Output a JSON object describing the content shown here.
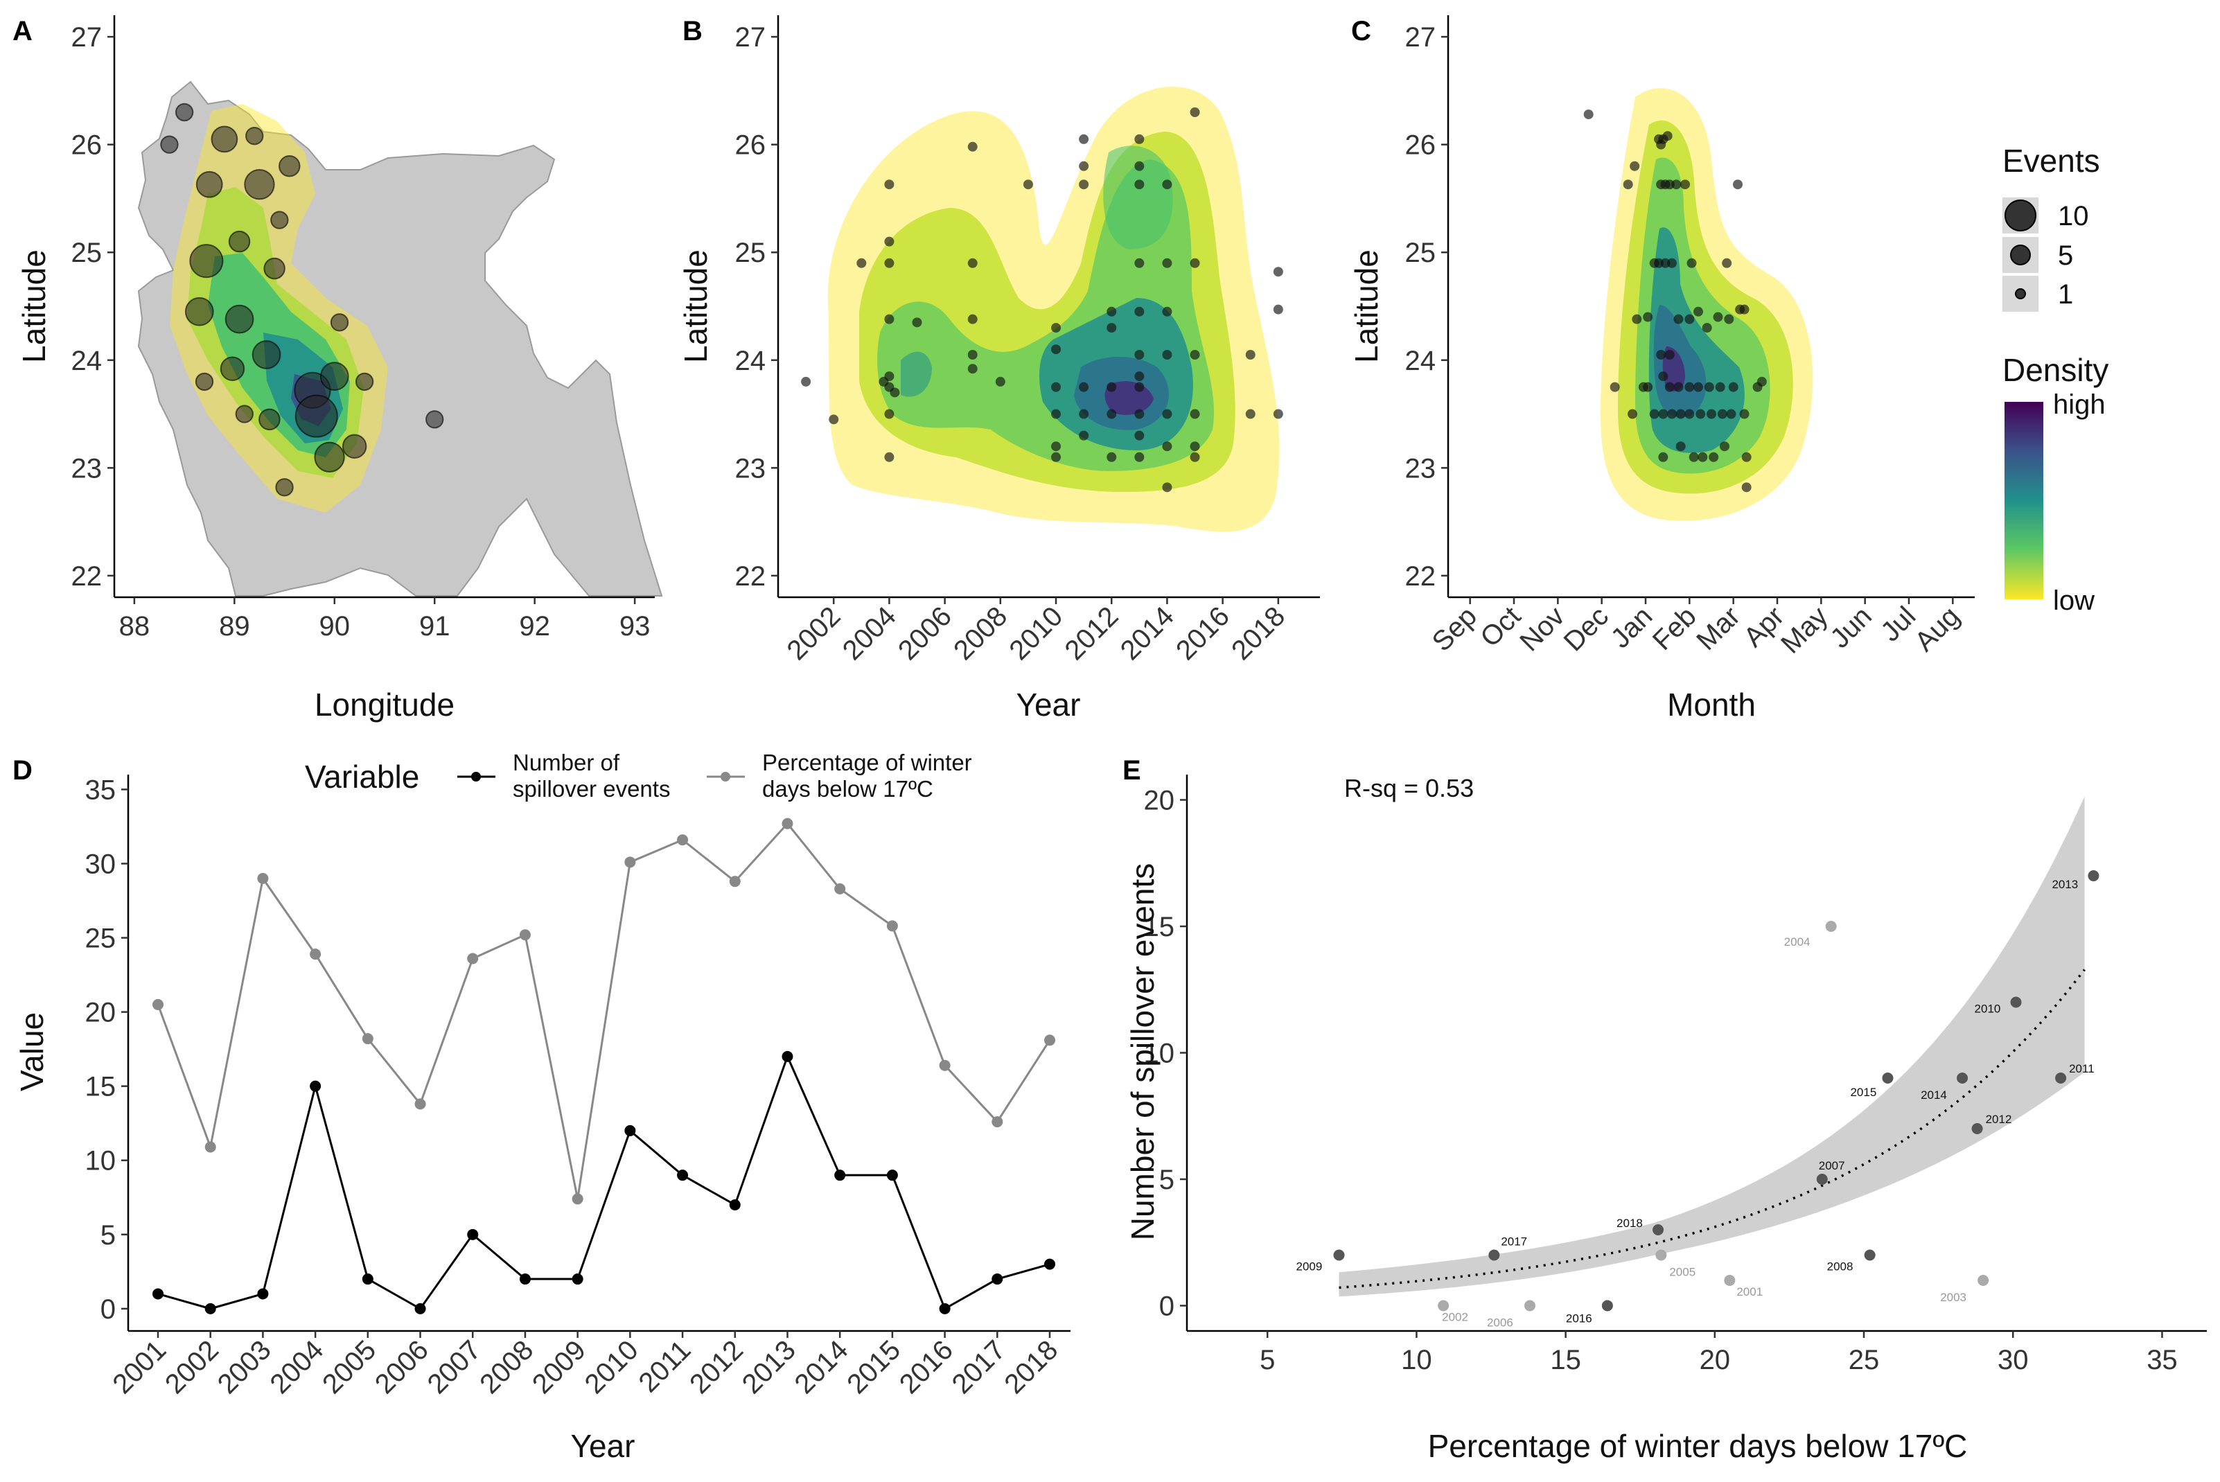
{
  "panels": {
    "A": {
      "label": "A",
      "xlabel": "Longitude",
      "ylabel": "Latitude",
      "xticks": [
        "88",
        "89",
        "90",
        "91",
        "92",
        "93"
      ],
      "yticks": [
        "22",
        "23",
        "24",
        "25",
        "26",
        "27"
      ]
    },
    "B": {
      "label": "B",
      "xlabel": "Year",
      "ylabel": "Latitude",
      "xticks": [
        "2002",
        "2004",
        "2006",
        "2008",
        "2010",
        "2012",
        "2014",
        "2016",
        "2018"
      ],
      "yticks": [
        "22",
        "23",
        "24",
        "25",
        "26",
        "27"
      ]
    },
    "C": {
      "label": "C",
      "xlabel": "Month",
      "ylabel": "Latitude",
      "xticks": [
        "Sep",
        "Oct",
        "Nov",
        "Dec",
        "Jan",
        "Feb",
        "Mar",
        "Apr",
        "May",
        "Jun",
        "Jul",
        "Aug"
      ],
      "yticks": [
        "22",
        "23",
        "24",
        "25",
        "26",
        "27"
      ]
    },
    "D": {
      "label": "D",
      "xlabel": "Year",
      "ylabel": "Value",
      "legend_title": "Variable",
      "legend_items": [
        "Number of spillover events",
        "Percentage of winter days below 17ºC"
      ],
      "legend_lines": [
        [
          "Number of",
          "spillover events"
        ],
        [
          "Percentage of winter",
          "days below 17ºC"
        ]
      ]
    },
    "E": {
      "label": "E",
      "xlabel": "Percentage of winter days below 17ºC",
      "ylabel": "Number of spillover events",
      "annotation": "R-sq = 0.53"
    }
  },
  "legend_right": {
    "events_title": "Events",
    "events_labels": [
      "10",
      "5",
      "1"
    ],
    "density_title": "Density",
    "density_high": "high",
    "density_low": "low"
  },
  "colors": {
    "series_events": "#000000",
    "series_pct": "#888888",
    "ribbon": "#c8c8c8",
    "map_land": "#c8c8c8"
  },
  "chart_data": [
    {
      "id": "A",
      "type": "scatter",
      "title": "",
      "xlabel": "Longitude",
      "ylabel": "Latitude",
      "xlim": [
        87.8,
        93.2
      ],
      "ylim": [
        21.8,
        27.2
      ],
      "points": [
        {
          "x": 88.35,
          "y": 26.0,
          "events": 1
        },
        {
          "x": 88.5,
          "y": 26.3,
          "events": 1
        },
        {
          "x": 88.75,
          "y": 25.63,
          "events": 4
        },
        {
          "x": 88.9,
          "y": 26.05,
          "events": 4
        },
        {
          "x": 89.2,
          "y": 26.08,
          "events": 1
        },
        {
          "x": 89.25,
          "y": 25.63,
          "events": 6
        },
        {
          "x": 89.55,
          "y": 25.8,
          "events": 2
        },
        {
          "x": 89.45,
          "y": 25.3,
          "events": 1
        },
        {
          "x": 88.72,
          "y": 24.92,
          "events": 8
        },
        {
          "x": 89.05,
          "y": 25.1,
          "events": 2
        },
        {
          "x": 89.4,
          "y": 24.85,
          "events": 2
        },
        {
          "x": 88.65,
          "y": 24.45,
          "events": 5
        },
        {
          "x": 89.05,
          "y": 24.38,
          "events": 5
        },
        {
          "x": 88.7,
          "y": 23.8,
          "events": 1
        },
        {
          "x": 88.98,
          "y": 23.92,
          "events": 3
        },
        {
          "x": 89.32,
          "y": 24.05,
          "events": 5
        },
        {
          "x": 89.1,
          "y": 23.5,
          "events": 1
        },
        {
          "x": 89.35,
          "y": 23.45,
          "events": 2
        },
        {
          "x": 89.78,
          "y": 23.72,
          "events": 10
        },
        {
          "x": 89.82,
          "y": 23.48,
          "events": 15
        },
        {
          "x": 90.0,
          "y": 23.85,
          "events": 5
        },
        {
          "x": 90.05,
          "y": 24.35,
          "events": 1
        },
        {
          "x": 90.3,
          "y": 23.8,
          "events": 1
        },
        {
          "x": 90.2,
          "y": 23.2,
          "events": 3
        },
        {
          "x": 89.95,
          "y": 23.1,
          "events": 6
        },
        {
          "x": 89.5,
          "y": 22.82,
          "events": 1
        },
        {
          "x": 91.0,
          "y": 23.45,
          "events": 1
        }
      ]
    },
    {
      "id": "B",
      "type": "scatter",
      "title": "",
      "xlabel": "Year",
      "ylabel": "Latitude",
      "xlim": [
        2000.0,
        2019.5
      ],
      "ylim": [
        21.8,
        27.2
      ],
      "points": [
        {
          "x": 2001,
          "y": 23.8
        },
        {
          "x": 2002,
          "y": 23.45
        },
        {
          "x": 2003,
          "y": 24.9
        },
        {
          "x": 2004,
          "y": 25.63
        },
        {
          "x": 2004,
          "y": 25.1
        },
        {
          "x": 2004,
          "y": 24.9
        },
        {
          "x": 2004,
          "y": 24.38
        },
        {
          "x": 2004,
          "y": 23.85
        },
        {
          "x": 2004,
          "y": 23.75
        },
        {
          "x": 2004,
          "y": 23.5
        },
        {
          "x": 2004,
          "y": 23.1
        },
        {
          "x": 2003.8,
          "y": 23.8
        },
        {
          "x": 2004.2,
          "y": 23.7
        },
        {
          "x": 2005,
          "y": 24.35
        },
        {
          "x": 2007,
          "y": 25.98
        },
        {
          "x": 2007,
          "y": 24.9
        },
        {
          "x": 2007,
          "y": 24.38
        },
        {
          "x": 2007,
          "y": 24.05
        },
        {
          "x": 2007,
          "y": 23.92
        },
        {
          "x": 2008,
          "y": 23.8
        },
        {
          "x": 2009,
          "y": 25.63
        },
        {
          "x": 2010,
          "y": 23.75
        },
        {
          "x": 2010,
          "y": 23.5
        },
        {
          "x": 2010,
          "y": 23.2
        },
        {
          "x": 2010,
          "y": 23.1
        },
        {
          "x": 2010,
          "y": 24.1
        },
        {
          "x": 2010,
          "y": 24.3
        },
        {
          "x": 2011,
          "y": 26.05
        },
        {
          "x": 2011,
          "y": 25.8
        },
        {
          "x": 2011,
          "y": 25.63
        },
        {
          "x": 2011,
          "y": 23.75
        },
        {
          "x": 2011,
          "y": 23.5
        },
        {
          "x": 2011,
          "y": 23.3
        },
        {
          "x": 2012,
          "y": 24.45
        },
        {
          "x": 2012,
          "y": 24.3
        },
        {
          "x": 2012,
          "y": 23.75
        },
        {
          "x": 2012,
          "y": 23.5
        },
        {
          "x": 2012,
          "y": 23.1
        },
        {
          "x": 2013,
          "y": 26.05
        },
        {
          "x": 2013,
          "y": 25.8
        },
        {
          "x": 2013,
          "y": 25.63
        },
        {
          "x": 2013,
          "y": 24.9
        },
        {
          "x": 2013,
          "y": 24.45
        },
        {
          "x": 2013,
          "y": 24.05
        },
        {
          "x": 2013,
          "y": 23.85
        },
        {
          "x": 2013,
          "y": 23.75
        },
        {
          "x": 2013,
          "y": 23.5
        },
        {
          "x": 2013,
          "y": 23.3
        },
        {
          "x": 2013,
          "y": 23.1
        },
        {
          "x": 2014,
          "y": 25.63
        },
        {
          "x": 2014,
          "y": 24.9
        },
        {
          "x": 2014,
          "y": 24.45
        },
        {
          "x": 2014,
          "y": 23.5
        },
        {
          "x": 2014,
          "y": 23.2
        },
        {
          "x": 2014,
          "y": 22.82
        },
        {
          "x": 2014,
          "y": 24.05
        },
        {
          "x": 2015,
          "y": 24.9
        },
        {
          "x": 2015,
          "y": 24.05
        },
        {
          "x": 2015,
          "y": 23.5
        },
        {
          "x": 2015,
          "y": 23.2
        },
        {
          "x": 2015,
          "y": 23.1
        },
        {
          "x": 2015,
          "y": 26.3
        },
        {
          "x": 2017,
          "y": 24.05
        },
        {
          "x": 2017,
          "y": 23.5
        },
        {
          "x": 2018,
          "y": 24.82
        },
        {
          "x": 2018,
          "y": 24.47
        },
        {
          "x": 2018,
          "y": 23.5
        }
      ]
    },
    {
      "id": "C",
      "type": "scatter",
      "title": "",
      "xlabel": "Month",
      "ylabel": "Latitude",
      "xlim": [
        0.5,
        12.5
      ],
      "ylim": [
        21.8,
        27.2
      ],
      "points": [
        {
          "x": 3.7,
          "y": 26.28
        },
        {
          "x": 4.3,
          "y": 23.75
        },
        {
          "x": 4.6,
          "y": 25.63
        },
        {
          "x": 4.75,
          "y": 25.8
        },
        {
          "x": 4.8,
          "y": 24.38
        },
        {
          "x": 4.7,
          "y": 23.5
        },
        {
          "x": 4.95,
          "y": 23.75
        },
        {
          "x": 5.05,
          "y": 23.75
        },
        {
          "x": 5.05,
          "y": 24.4
        },
        {
          "x": 5.2,
          "y": 24.9
        },
        {
          "x": 5.2,
          "y": 23.5
        },
        {
          "x": 5.3,
          "y": 26.05
        },
        {
          "x": 5.35,
          "y": 26.0
        },
        {
          "x": 5.4,
          "y": 26.05
        },
        {
          "x": 5.35,
          "y": 25.63
        },
        {
          "x": 5.45,
          "y": 25.63
        },
        {
          "x": 5.3,
          "y": 24.9
        },
        {
          "x": 5.45,
          "y": 24.9
        },
        {
          "x": 5.35,
          "y": 24.05
        },
        {
          "x": 5.4,
          "y": 23.85
        },
        {
          "x": 5.4,
          "y": 23.5
        },
        {
          "x": 5.4,
          "y": 23.1
        },
        {
          "x": 5.5,
          "y": 26.08
        },
        {
          "x": 5.55,
          "y": 25.63
        },
        {
          "x": 5.6,
          "y": 24.9
        },
        {
          "x": 5.55,
          "y": 24.05
        },
        {
          "x": 5.55,
          "y": 23.75
        },
        {
          "x": 5.6,
          "y": 23.5
        },
        {
          "x": 5.7,
          "y": 25.63
        },
        {
          "x": 5.75,
          "y": 24.38
        },
        {
          "x": 5.75,
          "y": 23.75
        },
        {
          "x": 5.8,
          "y": 23.5
        },
        {
          "x": 5.8,
          "y": 23.2
        },
        {
          "x": 5.9,
          "y": 25.63
        },
        {
          "x": 6.0,
          "y": 24.38
        },
        {
          "x": 6.0,
          "y": 23.75
        },
        {
          "x": 6.0,
          "y": 23.5
        },
        {
          "x": 6.05,
          "y": 24.9
        },
        {
          "x": 6.2,
          "y": 24.45
        },
        {
          "x": 6.2,
          "y": 23.75
        },
        {
          "x": 6.25,
          "y": 23.5
        },
        {
          "x": 6.3,
          "y": 23.1
        },
        {
          "x": 6.4,
          "y": 24.3
        },
        {
          "x": 6.45,
          "y": 23.75
        },
        {
          "x": 6.5,
          "y": 23.5
        },
        {
          "x": 6.55,
          "y": 23.1
        },
        {
          "x": 6.65,
          "y": 24.4
        },
        {
          "x": 6.7,
          "y": 23.75
        },
        {
          "x": 6.75,
          "y": 23.5
        },
        {
          "x": 6.8,
          "y": 23.2
        },
        {
          "x": 6.85,
          "y": 24.9
        },
        {
          "x": 6.9,
          "y": 24.38
        },
        {
          "x": 6.95,
          "y": 23.5
        },
        {
          "x": 7.0,
          "y": 23.75
        },
        {
          "x": 7.1,
          "y": 25.63
        },
        {
          "x": 7.15,
          "y": 24.47
        },
        {
          "x": 7.25,
          "y": 24.47
        },
        {
          "x": 7.25,
          "y": 23.5
        },
        {
          "x": 7.3,
          "y": 23.1
        },
        {
          "x": 7.3,
          "y": 22.82
        },
        {
          "x": 7.55,
          "y": 23.75
        },
        {
          "x": 7.65,
          "y": 23.8
        },
        {
          "x": 6.1,
          "y": 23.1
        }
      ]
    },
    {
      "id": "D",
      "type": "line",
      "title": "",
      "xlabel": "Year",
      "ylabel": "Value",
      "categories": [
        "2001",
        "2002",
        "2003",
        "2004",
        "2005",
        "2006",
        "2007",
        "2008",
        "2009",
        "2010",
        "2011",
        "2012",
        "2013",
        "2014",
        "2015",
        "2016",
        "2017",
        "2018"
      ],
      "ylim": [
        -1.5,
        36
      ],
      "yticks": [
        0,
        5,
        10,
        15,
        20,
        25,
        30,
        35
      ],
      "series": [
        {
          "name": "Number of spillover events",
          "values": [
            1,
            0,
            1,
            15,
            2,
            0,
            5,
            2,
            2,
            12,
            9,
            7,
            17,
            9,
            9,
            0,
            2,
            3
          ]
        },
        {
          "name": "Percentage of winter days below 17ºC",
          "values": [
            20.5,
            10.9,
            29.0,
            23.9,
            18.2,
            13.8,
            23.6,
            25.2,
            7.4,
            30.1,
            31.6,
            28.8,
            32.7,
            28.3,
            25.8,
            16.4,
            12.6,
            18.1
          ]
        }
      ],
      "legend": "top"
    },
    {
      "id": "E",
      "type": "scatter",
      "title": "",
      "xlabel": "Percentage of winter days below 17ºC",
      "ylabel": "Number of spillover events",
      "xlim": [
        2.3,
        36.5
      ],
      "ylim": [
        -1,
        21
      ],
      "xticks": [
        5,
        10,
        15,
        20,
        25,
        30,
        35
      ],
      "yticks": [
        0,
        5,
        10,
        15,
        20
      ],
      "annotation": "R-sq = 0.53",
      "points": [
        {
          "label": "2001",
          "x": 20.5,
          "y": 1
        },
        {
          "label": "2002",
          "x": 10.9,
          "y": 0
        },
        {
          "label": "2003",
          "x": 29.0,
          "y": 1
        },
        {
          "label": "2004",
          "x": 23.9,
          "y": 15
        },
        {
          "label": "2005",
          "x": 18.2,
          "y": 2
        },
        {
          "label": "2006",
          "x": 13.8,
          "y": 0
        },
        {
          "label": "2007",
          "x": 23.6,
          "y": 5
        },
        {
          "label": "2008",
          "x": 25.2,
          "y": 2
        },
        {
          "label": "2009",
          "x": 7.4,
          "y": 2
        },
        {
          "label": "2010",
          "x": 30.1,
          "y": 12
        },
        {
          "label": "2011",
          "x": 31.6,
          "y": 9
        },
        {
          "label": "2012",
          "x": 28.8,
          "y": 7
        },
        {
          "label": "2013",
          "x": 32.7,
          "y": 17
        },
        {
          "label": "2014",
          "x": 28.3,
          "y": 9
        },
        {
          "label": "2015",
          "x": 25.8,
          "y": 9
        },
        {
          "label": "2016",
          "x": 16.4,
          "y": 0
        },
        {
          "label": "2017",
          "x": 12.6,
          "y": 2
        },
        {
          "label": "2018",
          "x": 18.1,
          "y": 3
        }
      ],
      "fit": {
        "model": "exponential",
        "a": 0.3,
        "b": 0.117,
        "ci_band": true
      }
    }
  ]
}
